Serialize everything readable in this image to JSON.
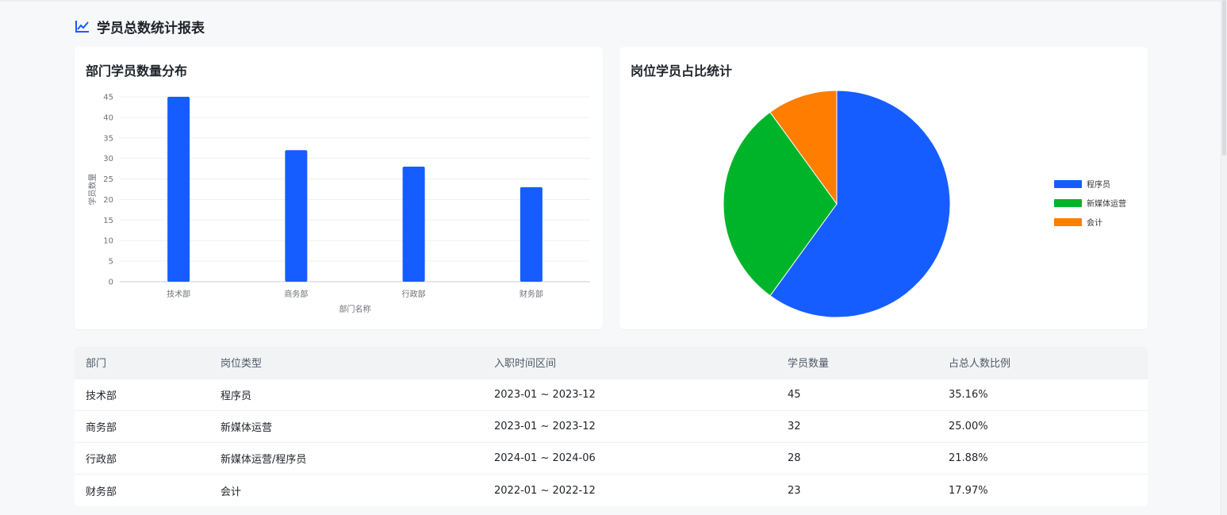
{
  "page": {
    "title": "学员总数统计报表",
    "icon": "trend-line-icon",
    "accent": "#165dff"
  },
  "bar_card": {
    "title": "部门学员数量分布"
  },
  "pie_card": {
    "title": "岗位学员占比统计"
  },
  "chart_data": [
    {
      "type": "bar",
      "categories": [
        "技术部",
        "商务部",
        "行政部",
        "财务部"
      ],
      "values": [
        45,
        32,
        28,
        23
      ],
      "xlabel": "部门名称",
      "ylabel": "学员数量",
      "ylim": [
        0,
        45
      ],
      "yticks": [
        0,
        5,
        10,
        15,
        20,
        25,
        30,
        35,
        40,
        45
      ],
      "color": "#165dff",
      "grid": true
    },
    {
      "type": "pie",
      "labels": [
        "程序员",
        "新媒体运营",
        "会计"
      ],
      "values": [
        60,
        30,
        10
      ],
      "colors": [
        "#165dff",
        "#00b42a",
        "#ff7d00"
      ],
      "legend": "right"
    }
  ],
  "table": {
    "headers": [
      "部门",
      "岗位类型",
      "入职时间区间",
      "学员数量",
      "占总人数比例"
    ],
    "rows": [
      [
        "技术部",
        "程序员",
        "2023-01 ~ 2023-12",
        "45",
        "35.16%"
      ],
      [
        "商务部",
        "新媒体运营",
        "2023-01 ~ 2023-12",
        "32",
        "25.00%"
      ],
      [
        "行政部",
        "新媒体运营/程序员",
        "2024-01 ~ 2024-06",
        "28",
        "21.88%"
      ],
      [
        "财务部",
        "会计",
        "2022-01 ~ 2022-12",
        "23",
        "17.97%"
      ]
    ]
  }
}
